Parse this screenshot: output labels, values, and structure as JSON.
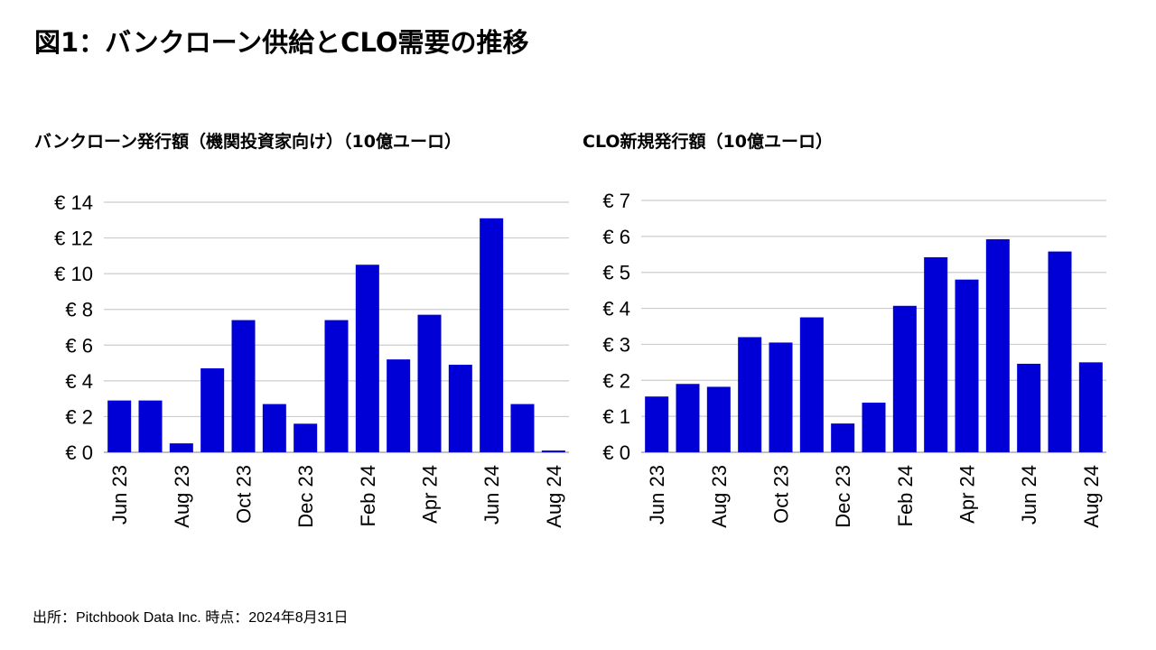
{
  "page": {
    "title": "図1：バンクローン供給とCLO需要の推移",
    "source": "出所：Pitchbook Data Inc. 時点：2024年8月31日"
  },
  "colors": {
    "bar": "#0000d6",
    "grid": "#cccccc",
    "axis": "#999999"
  },
  "chart_data": [
    {
      "type": "bar",
      "title": "バンクローン発行額（機関投資家向け）（10億ユーロ）",
      "currency_prefix": "€",
      "categories": [
        "Jun 23",
        "Jul 23",
        "Aug 23",
        "Sep 23",
        "Oct 23",
        "Nov 23",
        "Dec 23",
        "Jan 24",
        "Feb 24",
        "Mar 24",
        "Apr 24",
        "May 24",
        "Jun 24",
        "Jul 24",
        "Aug 24"
      ],
      "tick_labels": [
        "Jun 23",
        "Aug 23",
        "Oct 23",
        "Dec 23",
        "Feb 24",
        "Apr 24",
        "Jun 24",
        "Aug 24"
      ],
      "values": [
        2.9,
        2.9,
        0.5,
        4.7,
        7.4,
        2.7,
        1.6,
        7.4,
        10.5,
        5.2,
        7.7,
        4.9,
        13.1,
        2.7,
        0.1
      ],
      "ylim": [
        0,
        14
      ],
      "yticks": [
        0,
        2,
        4,
        6,
        8,
        10,
        12,
        14
      ],
      "grid": true,
      "legend": "none"
    },
    {
      "type": "bar",
      "title": "CLO新規発行額（10億ユーロ）",
      "currency_prefix": "€",
      "categories": [
        "Jun 23",
        "Jul 23",
        "Aug 23",
        "Sep 23",
        "Oct 23",
        "Nov 23",
        "Dec 23",
        "Jan 24",
        "Feb 24",
        "Mar 24",
        "Apr 24",
        "May 24",
        "Jun 24",
        "Jul 24",
        "Aug 24"
      ],
      "tick_labels": [
        "Jun 23",
        "Aug 23",
        "Oct 23",
        "Dec 23",
        "Feb 24",
        "Apr 24",
        "Jun 24",
        "Aug 24"
      ],
      "values": [
        1.55,
        1.9,
        1.82,
        3.2,
        3.05,
        3.75,
        0.8,
        1.38,
        4.07,
        5.42,
        4.8,
        5.92,
        2.46,
        5.58,
        2.5
      ],
      "ylim": [
        0,
        7
      ],
      "yticks": [
        0,
        1,
        2,
        3,
        4,
        5,
        6,
        7
      ],
      "grid": true,
      "legend": "none"
    }
  ]
}
